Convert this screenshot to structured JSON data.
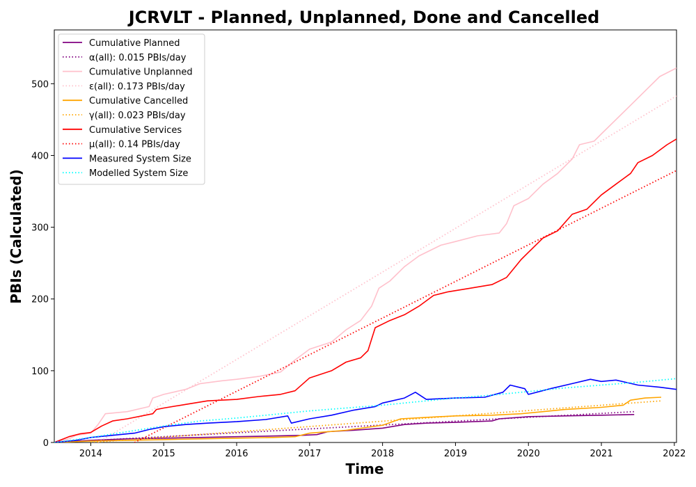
{
  "chart_data": {
    "type": "line",
    "title": "JCRVLT - Planned, Unplanned, Done  and Cancelled",
    "xlabel": "Time",
    "ylabel": "PBIs (Calculated)",
    "xlim": [
      2013.5,
      2022.03
    ],
    "ylim": [
      0,
      575
    ],
    "x_ticks": [
      2014,
      2015,
      2016,
      2017,
      2018,
      2019,
      2020,
      2021,
      2022
    ],
    "x_tick_labels": [
      "2014",
      "2015",
      "2016",
      "2017",
      "2018",
      "2019",
      "2020",
      "2021",
      "2022"
    ],
    "y_ticks": [
      0,
      100,
      200,
      300,
      400,
      500
    ],
    "y_tick_labels": [
      "0",
      "100",
      "200",
      "300",
      "400",
      "500"
    ],
    "grid": false,
    "legend_position": "top-left",
    "series": [
      {
        "name": "Cumulative Planned",
        "color": "#800080",
        "style": "solid",
        "points": [
          [
            2013.5,
            0
          ],
          [
            2014.0,
            3
          ],
          [
            2014.5,
            5
          ],
          [
            2015.0,
            6
          ],
          [
            2015.5,
            7
          ],
          [
            2016.0,
            8
          ],
          [
            2016.5,
            9
          ],
          [
            2016.9,
            10
          ],
          [
            2017.1,
            11
          ],
          [
            2017.25,
            15
          ],
          [
            2017.6,
            17
          ],
          [
            2018.0,
            20
          ],
          [
            2018.3,
            25
          ],
          [
            2018.6,
            27
          ],
          [
            2019.0,
            28
          ],
          [
            2019.5,
            30
          ],
          [
            2019.6,
            33
          ],
          [
            2020.0,
            36
          ],
          [
            2020.5,
            37
          ],
          [
            2021.0,
            38
          ],
          [
            2021.45,
            39
          ]
        ]
      },
      {
        "name": "α(all): 0.015 PBIs/day",
        "color": "#800080",
        "style": "dotted",
        "points": [
          [
            2013.5,
            0
          ],
          [
            2021.45,
            43
          ]
        ]
      },
      {
        "name": "Cumulative Unplanned",
        "color": "#ffc0cb",
        "style": "solid",
        "points": [
          [
            2013.5,
            0
          ],
          [
            2013.7,
            5
          ],
          [
            2013.8,
            10
          ],
          [
            2014.0,
            13
          ],
          [
            2014.1,
            25
          ],
          [
            2014.2,
            40
          ],
          [
            2014.5,
            43
          ],
          [
            2014.8,
            50
          ],
          [
            2014.85,
            62
          ],
          [
            2015.0,
            67
          ],
          [
            2015.3,
            74
          ],
          [
            2015.5,
            82
          ],
          [
            2015.8,
            86
          ],
          [
            2016.0,
            88
          ],
          [
            2016.3,
            92
          ],
          [
            2016.6,
            98
          ],
          [
            2016.8,
            115
          ],
          [
            2017.0,
            130
          ],
          [
            2017.3,
            140
          ],
          [
            2017.5,
            157
          ],
          [
            2017.7,
            170
          ],
          [
            2017.85,
            190
          ],
          [
            2017.95,
            215
          ],
          [
            2018.1,
            225
          ],
          [
            2018.3,
            245
          ],
          [
            2018.5,
            260
          ],
          [
            2018.8,
            275
          ],
          [
            2019.0,
            280
          ],
          [
            2019.3,
            288
          ],
          [
            2019.6,
            292
          ],
          [
            2019.7,
            305
          ],
          [
            2019.8,
            330
          ],
          [
            2020.0,
            340
          ],
          [
            2020.2,
            360
          ],
          [
            2020.4,
            375
          ],
          [
            2020.6,
            395
          ],
          [
            2020.7,
            415
          ],
          [
            2020.9,
            420
          ],
          [
            2021.0,
            430
          ],
          [
            2021.2,
            450
          ],
          [
            2021.4,
            470
          ],
          [
            2021.6,
            490
          ],
          [
            2021.8,
            510
          ],
          [
            2022.03,
            522
          ]
        ]
      },
      {
        "name": "ε(all): 0.173 PBIs/day",
        "color": "#ffc0cb",
        "style": "dotted",
        "points": [
          [
            2014.1,
            0
          ],
          [
            2022.03,
            483
          ]
        ]
      },
      {
        "name": "Cumulative Cancelled",
        "color": "#ffa500",
        "style": "solid",
        "points": [
          [
            2013.5,
            0
          ],
          [
            2014.0,
            2
          ],
          [
            2014.5,
            3
          ],
          [
            2015.0,
            4
          ],
          [
            2015.5,
            5
          ],
          [
            2016.0,
            6
          ],
          [
            2016.5,
            7
          ],
          [
            2016.8,
            8
          ],
          [
            2017.0,
            13
          ],
          [
            2017.5,
            17
          ],
          [
            2018.0,
            24
          ],
          [
            2018.25,
            33
          ],
          [
            2018.6,
            35
          ],
          [
            2019.0,
            37
          ],
          [
            2019.5,
            38
          ],
          [
            2019.9,
            40
          ],
          [
            2020.2,
            43
          ],
          [
            2020.5,
            46
          ],
          [
            2021.0,
            49
          ],
          [
            2021.3,
            52
          ],
          [
            2021.4,
            59
          ],
          [
            2021.6,
            62
          ],
          [
            2021.82,
            63
          ]
        ]
      },
      {
        "name": "γ(all): 0.023 PBIs/day",
        "color": "#ffa500",
        "style": "dotted",
        "points": [
          [
            2014.0,
            0
          ],
          [
            2021.82,
            58
          ]
        ]
      },
      {
        "name": "Cumulative Services",
        "color": "#ff0000",
        "style": "solid",
        "points": [
          [
            2013.5,
            0
          ],
          [
            2013.7,
            8
          ],
          [
            2013.85,
            12
          ],
          [
            2014.0,
            14
          ],
          [
            2014.15,
            23
          ],
          [
            2014.3,
            30
          ],
          [
            2014.5,
            33
          ],
          [
            2014.85,
            40
          ],
          [
            2014.9,
            46
          ],
          [
            2015.0,
            48
          ],
          [
            2015.3,
            53
          ],
          [
            2015.6,
            58
          ],
          [
            2016.0,
            60
          ],
          [
            2016.3,
            64
          ],
          [
            2016.6,
            67
          ],
          [
            2016.8,
            72
          ],
          [
            2017.0,
            90
          ],
          [
            2017.3,
            100
          ],
          [
            2017.5,
            112
          ],
          [
            2017.7,
            118
          ],
          [
            2017.8,
            128
          ],
          [
            2017.9,
            160
          ],
          [
            2018.1,
            170
          ],
          [
            2018.3,
            178
          ],
          [
            2018.5,
            190
          ],
          [
            2018.7,
            205
          ],
          [
            2018.9,
            210
          ],
          [
            2019.2,
            215
          ],
          [
            2019.5,
            220
          ],
          [
            2019.7,
            230
          ],
          [
            2019.9,
            255
          ],
          [
            2020.0,
            265
          ],
          [
            2020.2,
            285
          ],
          [
            2020.4,
            295
          ],
          [
            2020.6,
            318
          ],
          [
            2020.8,
            325
          ],
          [
            2021.0,
            345
          ],
          [
            2021.2,
            360
          ],
          [
            2021.4,
            375
          ],
          [
            2021.5,
            390
          ],
          [
            2021.7,
            400
          ],
          [
            2021.9,
            415
          ],
          [
            2022.03,
            423
          ]
        ]
      },
      {
        "name": "μ(all): 0.14 PBIs/day",
        "color": "#ff0000",
        "style": "dotted",
        "points": [
          [
            2014.6,
            0
          ],
          [
            2022.03,
            379
          ]
        ]
      },
      {
        "name": "Measured System Size",
        "color": "#0000ff",
        "style": "solid",
        "points": [
          [
            2013.5,
            0
          ],
          [
            2013.8,
            3
          ],
          [
            2014.0,
            7
          ],
          [
            2014.3,
            10
          ],
          [
            2014.6,
            13
          ],
          [
            2014.8,
            18
          ],
          [
            2015.0,
            22
          ],
          [
            2015.3,
            25
          ],
          [
            2015.6,
            27
          ],
          [
            2016.0,
            29
          ],
          [
            2016.4,
            32
          ],
          [
            2016.7,
            37
          ],
          [
            2016.75,
            27
          ],
          [
            2017.0,
            33
          ],
          [
            2017.3,
            38
          ],
          [
            2017.6,
            45
          ],
          [
            2017.9,
            50
          ],
          [
            2018.0,
            55
          ],
          [
            2018.3,
            62
          ],
          [
            2018.45,
            70
          ],
          [
            2018.6,
            60
          ],
          [
            2019.0,
            62
          ],
          [
            2019.4,
            63
          ],
          [
            2019.65,
            70
          ],
          [
            2019.75,
            80
          ],
          [
            2019.95,
            75
          ],
          [
            2020.0,
            67
          ],
          [
            2020.3,
            75
          ],
          [
            2020.6,
            82
          ],
          [
            2020.85,
            88
          ],
          [
            2021.0,
            85
          ],
          [
            2021.2,
            87
          ],
          [
            2021.5,
            80
          ],
          [
            2021.8,
            77
          ],
          [
            2022.03,
            74
          ]
        ]
      },
      {
        "name": "Modelled System Size",
        "color": "#00ffff",
        "style": "dotted",
        "points": [
          [
            2013.5,
            0
          ],
          [
            2014.0,
            7
          ],
          [
            2014.5,
            15
          ],
          [
            2015.0,
            23
          ],
          [
            2015.5,
            30
          ],
          [
            2016.0,
            34
          ],
          [
            2016.5,
            39
          ],
          [
            2017.0,
            44
          ],
          [
            2017.5,
            48
          ],
          [
            2018.0,
            52
          ],
          [
            2018.5,
            57
          ],
          [
            2019.0,
            62
          ],
          [
            2019.5,
            66
          ],
          [
            2020.0,
            71
          ],
          [
            2020.5,
            76
          ],
          [
            2021.0,
            80
          ],
          [
            2021.5,
            84
          ],
          [
            2022.03,
            89
          ]
        ]
      }
    ]
  }
}
